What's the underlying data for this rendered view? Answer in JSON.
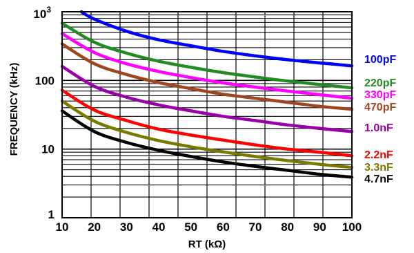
{
  "chart_data": {
    "type": "line",
    "title": "",
    "xlabel": "RT (kΩ)",
    "ylabel": "FREQUENCY (kHz)",
    "xscale": "linear",
    "yscale": "log",
    "xlim": [
      10,
      100
    ],
    "ylim": [
      1,
      1000
    ],
    "grid": true,
    "legend": "right, inline labels",
    "x_ticks": [
      "10",
      "20",
      "30",
      "40",
      "50",
      "60",
      "70",
      "80",
      "90",
      "100"
    ],
    "y_ticks": [
      {
        "value": 1,
        "label": "1",
        "sup": ""
      },
      {
        "value": 10,
        "label": "10",
        "sup": ""
      },
      {
        "value": 100,
        "label": "100",
        "sup": ""
      },
      {
        "value": 1000,
        "label": "10",
        "sup": "3"
      }
    ],
    "series": [
      {
        "name": "100pF",
        "color": "#0000ff",
        "x": [
          16,
          20,
          30,
          40,
          50,
          60,
          70,
          80,
          90,
          100
        ],
        "y": [
          1000,
          780,
          520,
          390,
          320,
          265,
          228,
          200,
          180,
          163
        ]
      },
      {
        "name": "220pF",
        "color": "#228b22",
        "x": [
          10,
          20,
          30,
          40,
          50,
          60,
          70,
          80,
          90,
          100
        ],
        "y": [
          680,
          360,
          250,
          190,
          155,
          130,
          112,
          98,
          87,
          78
        ]
      },
      {
        "name": "330pF",
        "color": "#ff00ff",
        "x": [
          10,
          20,
          30,
          40,
          50,
          60,
          70,
          80,
          90,
          100
        ],
        "y": [
          480,
          255,
          175,
          135,
          110,
          92,
          80,
          70,
          62,
          55
        ]
      },
      {
        "name": "470pF",
        "color": "#a0461e",
        "x": [
          10,
          20,
          30,
          40,
          50,
          60,
          70,
          80,
          90,
          100
        ],
        "y": [
          340,
          175,
          122,
          93,
          76,
          63,
          55,
          48,
          42,
          38
        ]
      },
      {
        "name": "1.0nF",
        "color": "#9900aa",
        "x": [
          10,
          20,
          30,
          40,
          50,
          60,
          70,
          80,
          90,
          100
        ],
        "y": [
          160,
          82,
          57,
          44,
          36,
          30,
          26,
          22.5,
          20,
          18
        ]
      },
      {
        "name": "2.2nF",
        "color": "#ff0000",
        "x": [
          10,
          20,
          30,
          40,
          50,
          60,
          70,
          80,
          90,
          100
        ],
        "y": [
          72,
          37,
          26,
          19.5,
          16,
          13.5,
          11.5,
          10,
          9,
          8
        ]
      },
      {
        "name": "3.3nF",
        "color": "#7a7a00",
        "x": [
          10,
          20,
          30,
          40,
          50,
          60,
          70,
          80,
          90,
          100
        ],
        "y": [
          50,
          25.5,
          17.5,
          13.3,
          10.8,
          9.1,
          7.8,
          6.8,
          6,
          5.4
        ]
      },
      {
        "name": "4.7nF",
        "color": "#000000",
        "x": [
          10,
          20,
          30,
          40,
          50,
          60,
          70,
          80,
          90,
          100
        ],
        "y": [
          36,
          18,
          12.5,
          9.6,
          7.8,
          6.5,
          5.6,
          4.9,
          4.3,
          3.9
        ]
      }
    ]
  }
}
